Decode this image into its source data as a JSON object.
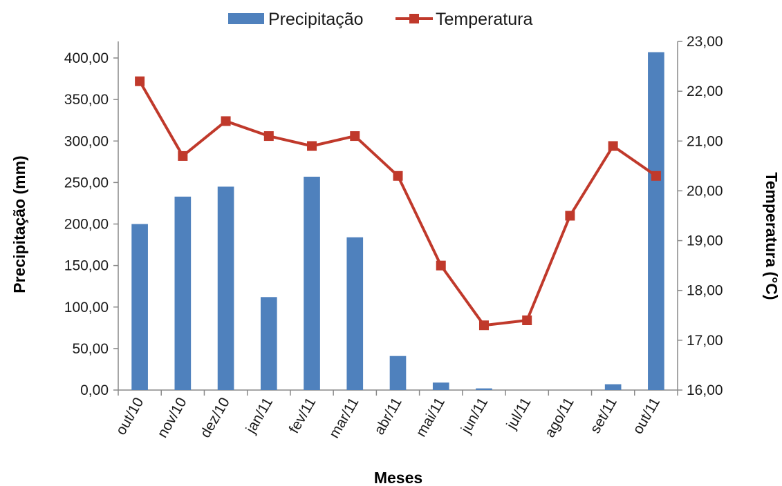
{
  "chart_data": {
    "type": "bar",
    "categories": [
      "out/10",
      "nov/10",
      "dez/10",
      "jan/11",
      "fev/11",
      "mar/11",
      "abr/11",
      "mai/11",
      "jun/11",
      "jul/11",
      "ago/11",
      "set/11",
      "out/11"
    ],
    "series": [
      {
        "name": "Precipitação",
        "type": "bar",
        "axis": "left",
        "color": "#4F81BD",
        "values": [
          200.0,
          233.0,
          245.0,
          112.0,
          257.0,
          184.0,
          41.0,
          9.0,
          2.0,
          0.0,
          0.0,
          7.0,
          407.0
        ]
      },
      {
        "name": "Temperatura",
        "type": "line",
        "axis": "right",
        "color": "#C0392B",
        "values": [
          22.2,
          20.7,
          21.4,
          21.1,
          20.9,
          21.1,
          20.3,
          18.5,
          17.3,
          17.4,
          19.5,
          20.9,
          20.3
        ]
      }
    ],
    "xlabel": "Meses",
    "ylabel": "Precipitação (mm)",
    "y2label": "Temperatura (°C)",
    "ylim": [
      0,
      400
    ],
    "y2lim": [
      16,
      23
    ],
    "yticks": [
      "0,00",
      "50,00",
      "100,00",
      "150,00",
      "200,00",
      "250,00",
      "300,00",
      "350,00",
      "400,00"
    ],
    "y2ticks": [
      "16,00",
      "17,00",
      "18,00",
      "19,00",
      "20,00",
      "21,00",
      "22,00",
      "23,00"
    ],
    "grid": false,
    "legend_position": "top-center"
  }
}
